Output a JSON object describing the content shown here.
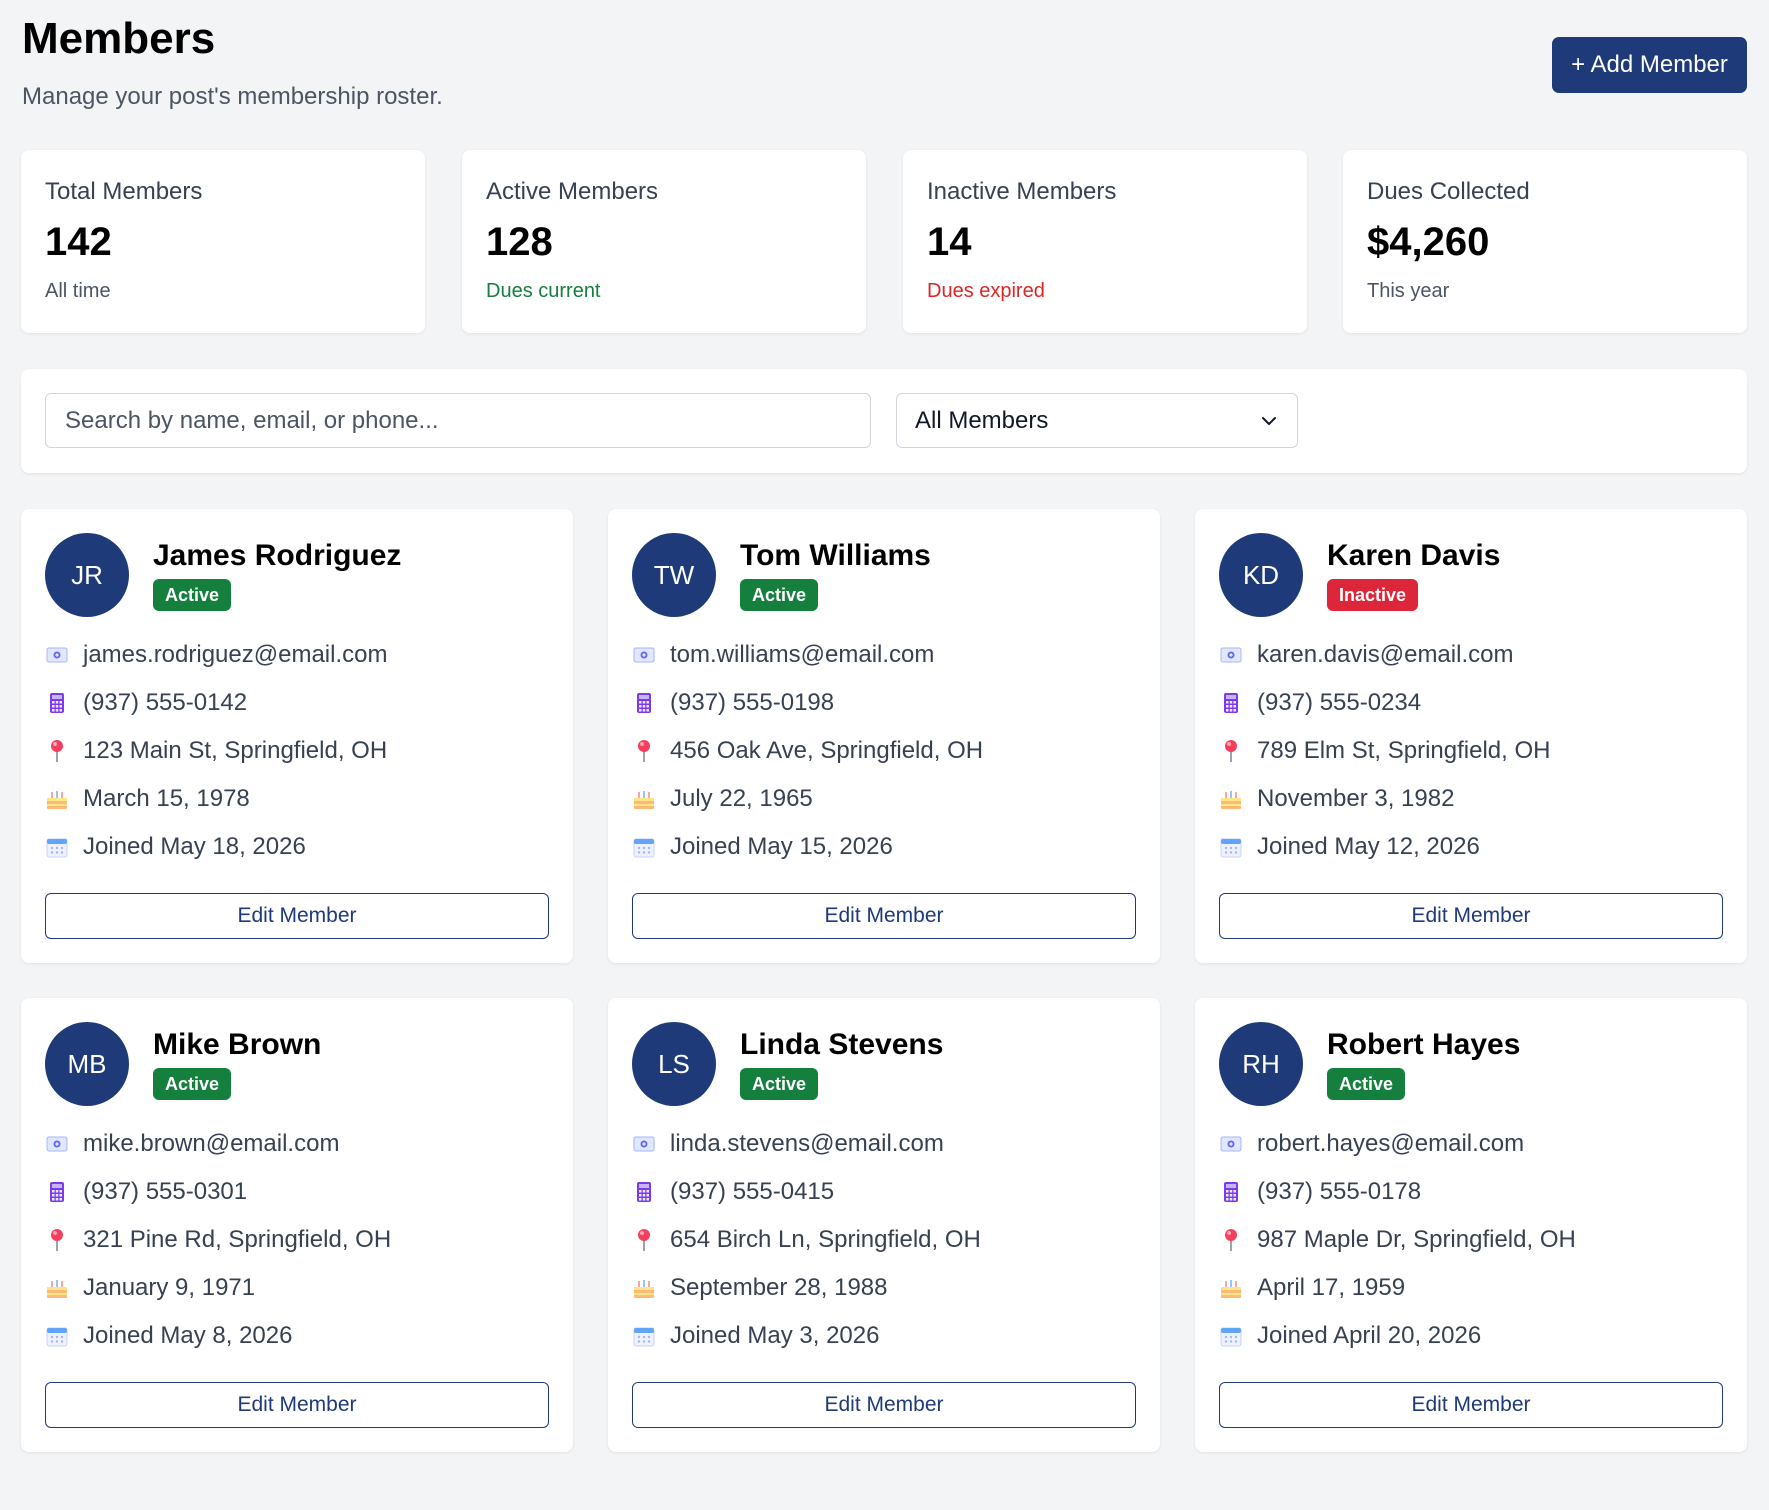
{
  "header": {
    "title": "Members",
    "subtitle": "Manage your post's membership roster.",
    "add_button": "+ Add Member"
  },
  "stats": [
    {
      "label": "Total Members",
      "value": "142",
      "sub": "All time",
      "tone": "neutral"
    },
    {
      "label": "Active Members",
      "value": "128",
      "sub": "Dues current",
      "tone": "green"
    },
    {
      "label": "Inactive Members",
      "value": "14",
      "sub": "Dues expired",
      "tone": "red"
    },
    {
      "label": "Dues Collected",
      "value": "$4,260",
      "sub": "This year",
      "tone": "neutral"
    }
  ],
  "filters": {
    "search_placeholder": "Search by name, email, or phone...",
    "status_select": "All Members"
  },
  "icons": {
    "email": "envelope-icon",
    "phone": "phone-icon",
    "address": "map-pin-icon",
    "birthday": "cake-icon",
    "joined": "calendar-icon"
  },
  "colors": {
    "primary": "#1e3a78",
    "active": "#15803d",
    "inactive": "#dc2639",
    "background": "#f3f4f6"
  },
  "members": [
    {
      "initials": "JR",
      "name": "James Rodriguez",
      "status": "Active",
      "email": "james.rodriguez@email.com",
      "phone": "(937) 555-0142",
      "address": "123 Main St, Springfield, OH",
      "birthday": "March 15, 1978",
      "joined": "Joined May 18, 2026",
      "edit_label": "Edit Member"
    },
    {
      "initials": "TW",
      "name": "Tom Williams",
      "status": "Active",
      "email": "tom.williams@email.com",
      "phone": "(937) 555-0198",
      "address": "456 Oak Ave, Springfield, OH",
      "birthday": "July 22, 1965",
      "joined": "Joined May 15, 2026",
      "edit_label": "Edit Member"
    },
    {
      "initials": "KD",
      "name": "Karen Davis",
      "status": "Inactive",
      "email": "karen.davis@email.com",
      "phone": "(937) 555-0234",
      "address": "789 Elm St, Springfield, OH",
      "birthday": "November 3, 1982",
      "joined": "Joined May 12, 2026",
      "edit_label": "Edit Member"
    },
    {
      "initials": "MB",
      "name": "Mike Brown",
      "status": "Active",
      "email": "mike.brown@email.com",
      "phone": "(937) 555-0301",
      "address": "321 Pine Rd, Springfield, OH",
      "birthday": "January 9, 1971",
      "joined": "Joined May 8, 2026",
      "edit_label": "Edit Member"
    },
    {
      "initials": "LS",
      "name": "Linda Stevens",
      "status": "Active",
      "email": "linda.stevens@email.com",
      "phone": "(937) 555-0415",
      "address": "654 Birch Ln, Springfield, OH",
      "birthday": "September 28, 1988",
      "joined": "Joined May 3, 2026",
      "edit_label": "Edit Member"
    },
    {
      "initials": "RH",
      "name": "Robert Hayes",
      "status": "Active",
      "email": "robert.hayes@email.com",
      "phone": "(937) 555-0178",
      "address": "987 Maple Dr, Springfield, OH",
      "birthday": "April 17, 1959",
      "joined": "Joined April 20, 2026",
      "edit_label": "Edit Member"
    }
  ]
}
